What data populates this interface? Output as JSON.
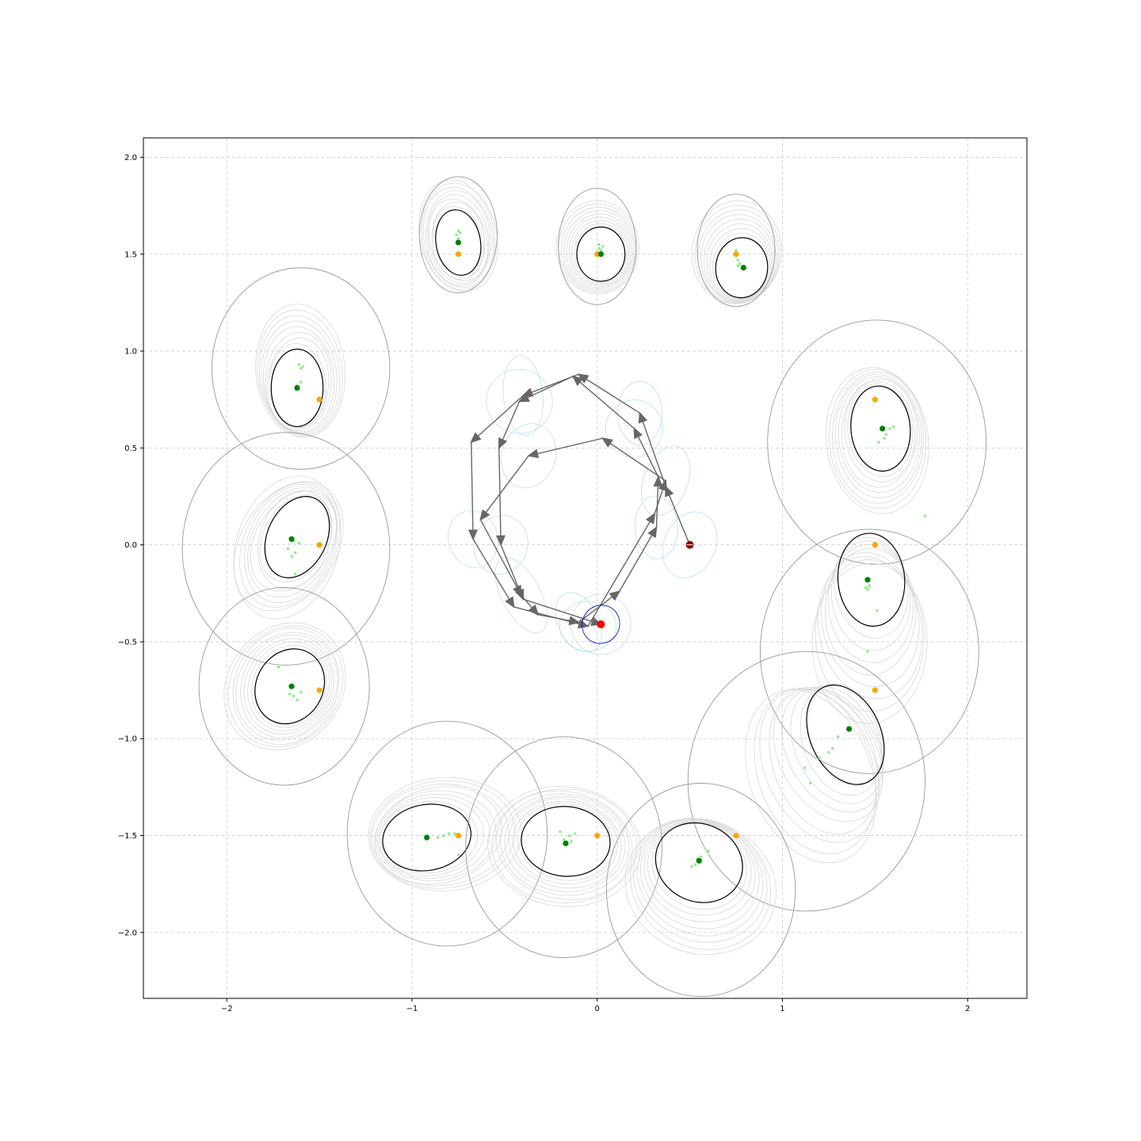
{
  "chart_data": {
    "type": "scatter",
    "title": "",
    "xlabel": "",
    "ylabel": "",
    "xlim": [
      -2.45,
      2.32
    ],
    "ylim": [
      -2.34,
      2.1
    ],
    "grid": true,
    "x_ticks": [
      {
        "value": -2,
        "label": "−2"
      },
      {
        "value": -1,
        "label": "−1"
      },
      {
        "value": 0,
        "label": "0"
      },
      {
        "value": 1,
        "label": "1"
      },
      {
        "value": 2,
        "label": "2"
      }
    ],
    "y_ticks": [
      {
        "value": 2.0,
        "label": "2.0"
      },
      {
        "value": 1.5,
        "label": "1.5"
      },
      {
        "value": 1.0,
        "label": "1.0"
      },
      {
        "value": 0.5,
        "label": "0.5"
      },
      {
        "value": 0.0,
        "label": "0.0"
      },
      {
        "value": -0.5,
        "label": "−0.5"
      },
      {
        "value": -1.0,
        "label": "−1.0"
      },
      {
        "value": -1.5,
        "label": "−1.5"
      },
      {
        "value": -2.0,
        "label": "−2.0"
      }
    ],
    "colors": {
      "goal": "#ffa500",
      "estimate": "#008000",
      "particles": "#90ee90",
      "ellipse": "#000000",
      "outer_circle": "#999999",
      "inner_traces": "#d3d3d3",
      "path_arrows": "#666666",
      "agent_ellipses": "#add8e6",
      "robot": "#ff0000",
      "robot_ellipse": "#0000cd",
      "start": "#8b0000",
      "grid": "#cccccc"
    },
    "landmarks": [
      {
        "goal": [
          -0.75,
          1.5
        ],
        "estimate": [
          -0.75,
          1.56
        ],
        "ellipse": {
          "center": [
            -0.75,
            1.56
          ],
          "rx": 0.12,
          "ry": 0.17,
          "angle": 10
        },
        "outer": {
          "center": [
            -0.75,
            1.6
          ],
          "rx": 0.21,
          "ry": 0.3
        },
        "particles": [
          [
            -0.75,
            1.62
          ],
          [
            -0.76,
            1.6
          ],
          [
            -0.74,
            1.61
          ],
          [
            -0.75,
            1.58
          ]
        ]
      },
      {
        "goal": [
          0.0,
          1.5
        ],
        "estimate": [
          0.02,
          1.5
        ],
        "ellipse": {
          "center": [
            0.02,
            1.5
          ],
          "rx": 0.13,
          "ry": 0.14,
          "angle": 0
        },
        "outer": {
          "center": [
            0.0,
            1.54
          ],
          "rx": 0.21,
          "ry": 0.3
        },
        "particles": [
          [
            0.01,
            1.55
          ],
          [
            0.03,
            1.54
          ],
          [
            0.02,
            1.52
          ],
          [
            0.01,
            1.53
          ]
        ]
      },
      {
        "goal": [
          0.75,
          1.5
        ],
        "estimate": [
          0.79,
          1.43
        ],
        "ellipse": {
          "center": [
            0.78,
            1.43
          ],
          "rx": 0.14,
          "ry": 0.155,
          "angle": -5
        },
        "outer": {
          "center": [
            0.75,
            1.52
          ],
          "rx": 0.21,
          "ry": 0.29
        },
        "particles": [
          [
            0.76,
            1.47
          ],
          [
            0.75,
            1.52
          ],
          [
            0.77,
            1.45
          ],
          [
            0.76,
            1.44
          ]
        ]
      },
      {
        "goal": [
          -1.5,
          0.75
        ],
        "estimate": [
          -1.62,
          0.81
        ],
        "ellipse": {
          "center": [
            -1.62,
            0.81
          ],
          "rx": 0.14,
          "ry": 0.2,
          "angle": 0
        },
        "outer": {
          "center": [
            -1.6,
            0.91
          ],
          "rx": 0.48,
          "ry": 0.52
        },
        "particles": [
          [
            -1.61,
            0.93
          ],
          [
            -1.6,
            0.91
          ],
          [
            -1.59,
            0.92
          ],
          [
            -1.6,
            0.84
          ],
          [
            -1.62,
            0.82
          ]
        ]
      },
      {
        "goal": [
          1.5,
          0.75
        ],
        "estimate": [
          1.54,
          0.6
        ],
        "ellipse": {
          "center": [
            1.53,
            0.6
          ],
          "rx": 0.16,
          "ry": 0.22,
          "angle": 5
        },
        "outer": {
          "center": [
            1.51,
            0.53
          ],
          "rx": 0.59,
          "ry": 0.63
        },
        "particles": [
          [
            1.58,
            0.6
          ],
          [
            1.6,
            0.61
          ],
          [
            1.56,
            0.57
          ],
          [
            1.55,
            0.55
          ],
          [
            1.52,
            0.53
          ],
          [
            1.77,
            0.15
          ]
        ]
      },
      {
        "goal": [
          -1.5,
          0.0
        ],
        "estimate": [
          -1.65,
          0.03
        ],
        "ellipse": {
          "center": [
            -1.62,
            0.04
          ],
          "rx": 0.16,
          "ry": 0.22,
          "angle": -25
        },
        "outer": {
          "center": [
            -1.68,
            -0.02
          ],
          "rx": 0.56,
          "ry": 0.6
        },
        "particles": [
          [
            -1.64,
            0.02
          ],
          [
            -1.67,
            -0.02
          ],
          [
            -1.65,
            -0.06
          ],
          [
            -1.63,
            -0.04
          ],
          [
            -1.61,
            0.01
          ],
          [
            -1.63,
            -0.15
          ]
        ]
      },
      {
        "goal": [
          1.5,
          0.0
        ],
        "estimate": [
          1.46,
          -0.18
        ],
        "ellipse": {
          "center": [
            1.48,
            -0.18
          ],
          "rx": 0.18,
          "ry": 0.24,
          "angle": 5
        },
        "outer": {
          "center": [
            1.47,
            -0.55
          ],
          "rx": 0.59,
          "ry": 0.63
        },
        "particles": [
          [
            1.47,
            -0.21
          ],
          [
            1.46,
            -0.23
          ],
          [
            1.45,
            -0.22
          ],
          [
            1.51,
            -0.34
          ],
          [
            1.46,
            -0.55
          ]
        ]
      },
      {
        "goal": [
          -1.5,
          -0.75
        ],
        "estimate": [
          -1.65,
          -0.73
        ],
        "ellipse": {
          "center": [
            -1.66,
            -0.73
          ],
          "rx": 0.18,
          "ry": 0.2,
          "angle": -30
        },
        "outer": {
          "center": [
            -1.69,
            -0.73
          ],
          "rx": 0.46,
          "ry": 0.51
        },
        "particles": [
          [
            -1.6,
            -0.76
          ],
          [
            -1.62,
            -0.8
          ],
          [
            -1.64,
            -0.78
          ],
          [
            -1.66,
            -0.77
          ],
          [
            -1.72,
            -0.63
          ]
        ]
      },
      {
        "goal": [
          1.5,
          -0.75
        ],
        "estimate": [
          1.36,
          -0.95
        ],
        "ellipse": {
          "center": [
            1.34,
            -0.98
          ],
          "rx": 0.19,
          "ry": 0.27,
          "angle": 25
        },
        "outer": {
          "center": [
            1.13,
            -1.22
          ],
          "rx": 0.64,
          "ry": 0.67
        },
        "particles": [
          [
            1.3,
            -0.99
          ],
          [
            1.25,
            -1.07
          ],
          [
            1.2,
            -1.1
          ],
          [
            1.12,
            -1.15
          ],
          [
            1.27,
            -1.05
          ],
          [
            1.15,
            -1.23
          ]
        ]
      },
      {
        "goal": [
          -0.75,
          -1.5
        ],
        "estimate": [
          -0.92,
          -1.51
        ],
        "ellipse": {
          "center": [
            -0.92,
            -1.51
          ],
          "rx": 0.24,
          "ry": 0.17,
          "angle": 10
        },
        "outer": {
          "center": [
            -0.81,
            -1.49
          ],
          "rx": 0.54,
          "ry": 0.58
        },
        "particles": [
          [
            -0.8,
            -1.49
          ],
          [
            -0.77,
            -1.49
          ],
          [
            -0.83,
            -1.5
          ],
          [
            -0.86,
            -1.51
          ],
          [
            -0.75,
            -1.6
          ]
        ]
      },
      {
        "goal": [
          0.0,
          -1.5
        ],
        "estimate": [
          -0.17,
          -1.54
        ],
        "ellipse": {
          "center": [
            -0.17,
            -1.53
          ],
          "rx": 0.24,
          "ry": 0.18,
          "angle": -5
        },
        "outer": {
          "center": [
            -0.18,
            -1.56
          ],
          "rx": 0.53,
          "ry": 0.57
        },
        "particles": [
          [
            -0.2,
            -1.48
          ],
          [
            -0.15,
            -1.5
          ],
          [
            -0.12,
            -1.49
          ],
          [
            -0.18,
            -1.52
          ],
          [
            -0.14,
            -1.53
          ]
        ]
      },
      {
        "goal": [
          0.75,
          -1.5
        ],
        "estimate": [
          0.55,
          -1.63
        ],
        "ellipse": {
          "center": [
            0.55,
            -1.64
          ],
          "rx": 0.24,
          "ry": 0.2,
          "angle": -25
        },
        "outer": {
          "center": [
            0.56,
            -1.78
          ],
          "rx": 0.51,
          "ry": 0.55
        },
        "particles": [
          [
            0.56,
            -1.61
          ],
          [
            0.54,
            -1.62
          ],
          [
            0.53,
            -1.65
          ],
          [
            0.6,
            -1.58
          ],
          [
            0.51,
            -1.66
          ]
        ]
      }
    ],
    "robot_path": [
      [
        0.5,
        0.0
      ],
      [
        0.37,
        0.3
      ],
      [
        0.23,
        0.68
      ],
      [
        -0.1,
        0.88
      ],
      [
        -0.4,
        0.77
      ],
      [
        -0.68,
        0.53
      ],
      [
        -0.67,
        0.03
      ],
      [
        -0.45,
        -0.32
      ],
      [
        -0.05,
        -0.42
      ],
      [
        0.31,
        0.16
      ],
      [
        0.37,
        0.33
      ],
      [
        0.03,
        0.55
      ],
      [
        -0.37,
        0.46
      ],
      [
        -0.63,
        0.13
      ],
      [
        -0.41,
        -0.26
      ],
      [
        -0.32,
        -0.36
      ],
      [
        -0.1,
        -0.4
      ],
      [
        0.12,
        -0.24
      ],
      [
        0.32,
        0.09
      ],
      [
        0.33,
        0.35
      ],
      [
        0.2,
        0.6
      ],
      [
        -0.13,
        0.87
      ],
      [
        -0.42,
        0.74
      ],
      [
        -0.53,
        0.5
      ],
      [
        -0.52,
        0.0
      ],
      [
        -0.4,
        -0.28
      ],
      [
        0.02,
        -0.41
      ]
    ],
    "robot": [
      0.02,
      -0.41
    ],
    "start": [
      0.5,
      0.0
    ]
  }
}
